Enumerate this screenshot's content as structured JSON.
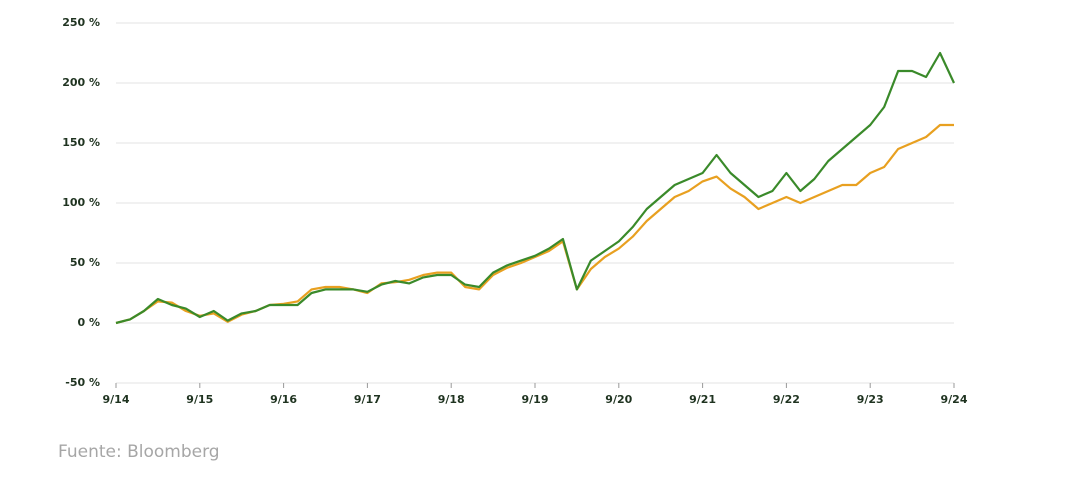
{
  "chart_data": {
    "type": "line",
    "x": [
      "9/14",
      "11/14",
      "1/15",
      "3/15",
      "5/15",
      "7/15",
      "9/15",
      "11/15",
      "1/16",
      "3/16",
      "5/16",
      "7/16",
      "9/16",
      "11/16",
      "1/17",
      "3/17",
      "5/17",
      "7/17",
      "9/17",
      "11/17",
      "1/18",
      "3/18",
      "5/18",
      "7/18",
      "9/18",
      "11/18",
      "1/19",
      "3/19",
      "5/19",
      "7/19",
      "9/19",
      "11/19",
      "1/20",
      "3/20",
      "5/20",
      "7/20",
      "9/20",
      "11/20",
      "1/21",
      "3/21",
      "5/21",
      "7/21",
      "9/21",
      "11/21",
      "1/22",
      "3/22",
      "5/22",
      "7/22",
      "9/22",
      "11/22",
      "1/23",
      "3/23",
      "5/23",
      "7/23",
      "9/23",
      "11/23",
      "1/24",
      "3/24",
      "5/24",
      "7/24",
      "9/24"
    ],
    "series": [
      {
        "color": "#e8a020",
        "values": [
          0,
          3,
          10,
          18,
          17,
          10,
          6,
          8,
          1,
          7,
          10,
          15,
          16,
          18,
          28,
          30,
          30,
          28,
          25,
          33,
          34,
          36,
          40,
          42,
          42,
          30,
          28,
          40,
          46,
          50,
          55,
          60,
          68,
          28,
          45,
          55,
          62,
          72,
          85,
          95,
          105,
          110,
          118,
          122,
          112,
          105,
          95,
          100,
          105,
          100,
          105,
          110,
          115,
          115,
          125,
          130,
          145,
          150,
          155,
          165,
          165
        ]
      },
      {
        "color": "#3a8a2a",
        "values": [
          0,
          3,
          10,
          20,
          15,
          12,
          5,
          10,
          2,
          8,
          10,
          15,
          15,
          15,
          25,
          28,
          28,
          28,
          26,
          32,
          35,
          33,
          38,
          40,
          40,
          32,
          30,
          42,
          48,
          52,
          56,
          62,
          70,
          28,
          52,
          60,
          68,
          80,
          95,
          105,
          115,
          120,
          125,
          140,
          125,
          115,
          105,
          110,
          125,
          110,
          120,
          135,
          145,
          155,
          165,
          180,
          210,
          210,
          205,
          225,
          200
        ]
      }
    ],
    "ylim": [
      -50,
      250
    ],
    "yticks": [
      {
        "value": -50,
        "label": "-50 %"
      },
      {
        "value": 0,
        "label": "0 %"
      },
      {
        "value": 50,
        "label": "50 %"
      },
      {
        "value": 100,
        "label": "100 %"
      },
      {
        "value": 150,
        "label": "150 %"
      },
      {
        "value": 200,
        "label": "200 %"
      },
      {
        "value": 250,
        "label": "250 %"
      }
    ],
    "xticks": [
      "9/14",
      "9/15",
      "9/16",
      "9/17",
      "9/18",
      "9/19",
      "9/20",
      "9/21",
      "9/22",
      "9/23",
      "9/24"
    ],
    "grid": true,
    "source": "Fuente: Bloomberg"
  }
}
